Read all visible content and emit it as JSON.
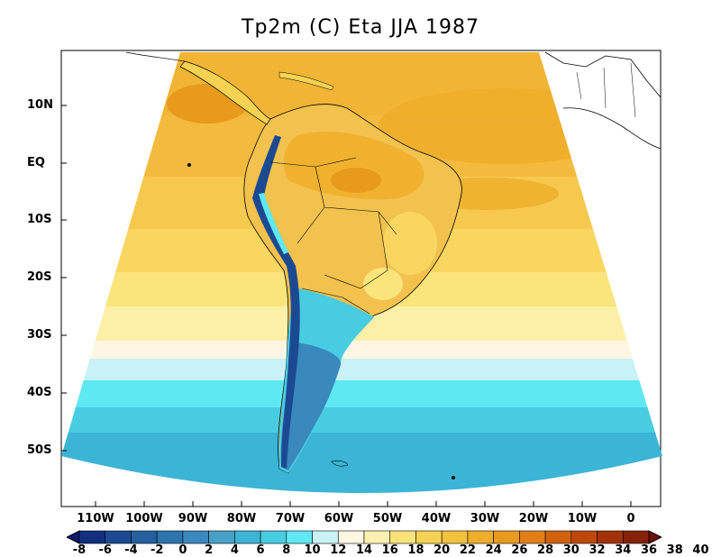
{
  "title": "Tp2m (C) Eta JJA 1987",
  "y_axis": {
    "labels": [
      "10N",
      "EQ",
      "10S",
      "20S",
      "30S",
      "40S",
      "50S"
    ]
  },
  "x_axis": {
    "labels": [
      "110W",
      "100W",
      "90W",
      "80W",
      "70W",
      "60W",
      "50W",
      "40W",
      "30W",
      "20W",
      "10W",
      "0"
    ]
  },
  "colorbar": {
    "labels": [
      "-8",
      "-6",
      "-4",
      "-2",
      "0",
      "2",
      "4",
      "6",
      "8",
      "10",
      "12",
      "14",
      "16",
      "18",
      "20",
      "22",
      "24",
      "26",
      "28",
      "30",
      "32",
      "34",
      "36",
      "38",
      "40"
    ],
    "colors": [
      "#0a1a6e",
      "#12307e",
      "#1c4a92",
      "#24609e",
      "#2e74ae",
      "#3a88bc",
      "#48a0c8",
      "#3cb4d6",
      "#48cce2",
      "#5ee8f2",
      "#c8f2f8",
      "#fdf6e2",
      "#fcf0b0",
      "#f9e27a",
      "#f5d252",
      "#f2c13e",
      "#eeae2a",
      "#e89a1c",
      "#e17e14",
      "#d2620e",
      "#bd480a",
      "#a23208",
      "#862208",
      "#6e1208"
    ]
  },
  "chart_data": {
    "type": "heatmap",
    "title": "Tp2m (C) Eta JJA 1987",
    "variable": "Tp2m (C)",
    "model": "Eta",
    "season": "JJA",
    "year": 1987,
    "lon_ticks": [
      "110W",
      "100W",
      "90W",
      "80W",
      "70W",
      "60W",
      "50W",
      "40W",
      "30W",
      "20W",
      "10W",
      "0"
    ],
    "lat_ticks": [
      "10N",
      "EQ",
      "10S",
      "20S",
      "30S",
      "40S",
      "50S"
    ],
    "colorbar_levels": [
      -8,
      -6,
      -4,
      -2,
      0,
      2,
      4,
      6,
      8,
      10,
      12,
      14,
      16,
      18,
      20,
      22,
      24,
      26,
      28,
      30,
      32,
      34,
      36,
      38,
      40
    ],
    "zonal_bands_c": [
      {
        "lat": "10N",
        "value": 27
      },
      {
        "lat": "EQ",
        "value": 26
      },
      {
        "lat": "10S",
        "value": 24
      },
      {
        "lat": "20S",
        "value": 21
      },
      {
        "lat": "30S",
        "value": 17
      },
      {
        "lat": "40S",
        "value": 11
      },
      {
        "lat": "50S",
        "value": 6
      }
    ]
  }
}
